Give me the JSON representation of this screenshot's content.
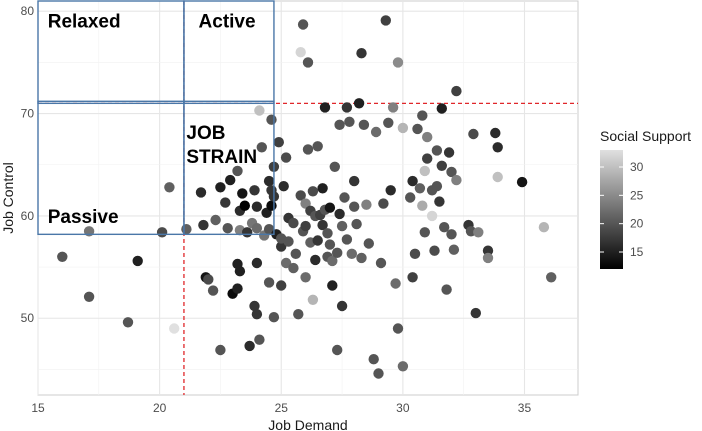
{
  "chart_data": {
    "type": "scatter",
    "xlabel": "Job Demand",
    "ylabel": "Job Control",
    "xlim": [
      15,
      37.2
    ],
    "ylim": [
      42.5,
      81
    ],
    "xticks": [
      15,
      20,
      25,
      30,
      35
    ],
    "yticks": [
      50,
      60,
      70,
      80
    ],
    "grid": true,
    "threshold_x": 21,
    "threshold_y": 71,
    "quadrant_labels": [
      {
        "name": "relaxed",
        "lines": [
          "Relaxed"
        ],
        "x": 15.4,
        "y": 79.0
      },
      {
        "name": "active",
        "lines": [
          "Active"
        ],
        "x": 21.6,
        "y": 79.0
      },
      {
        "name": "job-strain",
        "lines": [
          "JOB",
          "STRAIN"
        ],
        "x": 21.1,
        "y": 68.1
      },
      {
        "name": "passive",
        "lines": [
          "Passive"
        ],
        "x": 15.4,
        "y": 59.9
      }
    ],
    "quadrant_boxes": [
      {
        "x0": 15,
        "x1": 21,
        "y0": 71,
        "y1": 81
      },
      {
        "x0": 21,
        "x1": 24.7,
        "y0": 71,
        "y1": 81
      },
      {
        "x0": 15,
        "x1": 21,
        "y0": 58.2,
        "y1": 71.2
      },
      {
        "x0": 21,
        "x1": 24.7,
        "y0": 58.2,
        "y1": 71.2
      }
    ],
    "legend": {
      "title": "Social Support",
      "range": [
        12,
        33
      ],
      "ticks": [
        15,
        20,
        25,
        30
      ],
      "position": "right"
    },
    "points": [
      {
        "x": 16.0,
        "y": 56.0,
        "s": 20
      },
      {
        "x": 17.1,
        "y": 52.1,
        "s": 20
      },
      {
        "x": 17.1,
        "y": 58.5,
        "s": 23
      },
      {
        "x": 18.7,
        "y": 49.6,
        "s": 20
      },
      {
        "x": 19.1,
        "y": 55.6,
        "s": 15
      },
      {
        "x": 20.1,
        "y": 58.4,
        "s": 19
      },
      {
        "x": 20.4,
        "y": 62.8,
        "s": 21
      },
      {
        "x": 20.6,
        "y": 49.0,
        "s": 33
      },
      {
        "x": 21.1,
        "y": 58.7,
        "s": 21
      },
      {
        "x": 21.7,
        "y": 62.3,
        "s": 16
      },
      {
        "x": 21.8,
        "y": 59.1,
        "s": 17
      },
      {
        "x": 21.9,
        "y": 54.0,
        "s": 14
      },
      {
        "x": 22.0,
        "y": 53.8,
        "s": 19
      },
      {
        "x": 22.2,
        "y": 52.7,
        "s": 20
      },
      {
        "x": 22.3,
        "y": 59.6,
        "s": 21
      },
      {
        "x": 22.5,
        "y": 62.8,
        "s": 15
      },
      {
        "x": 22.5,
        "y": 46.9,
        "s": 20
      },
      {
        "x": 22.7,
        "y": 61.3,
        "s": 17
      },
      {
        "x": 22.8,
        "y": 58.8,
        "s": 20
      },
      {
        "x": 22.9,
        "y": 63.5,
        "s": 15
      },
      {
        "x": 23.0,
        "y": 52.4,
        "s": 13
      },
      {
        "x": 23.2,
        "y": 64.4,
        "s": 20
      },
      {
        "x": 23.2,
        "y": 55.3,
        "s": 15
      },
      {
        "x": 23.2,
        "y": 52.9,
        "s": 15
      },
      {
        "x": 23.3,
        "y": 58.6,
        "s": 24
      },
      {
        "x": 23.3,
        "y": 54.6,
        "s": 15
      },
      {
        "x": 23.3,
        "y": 60.5,
        "s": 16
      },
      {
        "x": 23.4,
        "y": 62.2,
        "s": 14
      },
      {
        "x": 23.5,
        "y": 61.0,
        "s": 11
      },
      {
        "x": 23.6,
        "y": 58.4,
        "s": 17
      },
      {
        "x": 23.7,
        "y": 47.3,
        "s": 16
      },
      {
        "x": 23.8,
        "y": 59.3,
        "s": 23
      },
      {
        "x": 23.9,
        "y": 62.5,
        "s": 17
      },
      {
        "x": 23.9,
        "y": 51.2,
        "s": 17
      },
      {
        "x": 24.0,
        "y": 55.4,
        "s": 16
      },
      {
        "x": 24.0,
        "y": 58.8,
        "s": 22
      },
      {
        "x": 24.0,
        "y": 60.9,
        "s": 16
      },
      {
        "x": 24.0,
        "y": 50.4,
        "s": 17
      },
      {
        "x": 24.1,
        "y": 47.9,
        "s": 20
      },
      {
        "x": 24.1,
        "y": 70.3,
        "s": 30
      },
      {
        "x": 24.2,
        "y": 66.7,
        "s": 20
      },
      {
        "x": 24.3,
        "y": 58.1,
        "s": 23
      },
      {
        "x": 24.4,
        "y": 60.3,
        "s": 15
      },
      {
        "x": 24.5,
        "y": 58.7,
        "s": 20
      },
      {
        "x": 24.5,
        "y": 63.4,
        "s": 16
      },
      {
        "x": 24.5,
        "y": 53.5,
        "s": 20
      },
      {
        "x": 24.6,
        "y": 61.0,
        "s": 13
      },
      {
        "x": 24.6,
        "y": 69.4,
        "s": 20
      },
      {
        "x": 24.6,
        "y": 62.5,
        "s": 17
      },
      {
        "x": 24.7,
        "y": 64.8,
        "s": 18
      },
      {
        "x": 24.7,
        "y": 61.9,
        "s": 17
      },
      {
        "x": 24.7,
        "y": 50.1,
        "s": 20
      },
      {
        "x": 24.8,
        "y": 58.2,
        "s": 15
      },
      {
        "x": 24.9,
        "y": 67.2,
        "s": 18
      },
      {
        "x": 25.0,
        "y": 53.2,
        "s": 18
      },
      {
        "x": 25.0,
        "y": 57.0,
        "s": 17
      },
      {
        "x": 25.0,
        "y": 57.8,
        "s": 20
      },
      {
        "x": 25.1,
        "y": 62.9,
        "s": 16
      },
      {
        "x": 25.2,
        "y": 55.4,
        "s": 22
      },
      {
        "x": 25.2,
        "y": 65.7,
        "s": 19
      },
      {
        "x": 25.3,
        "y": 59.8,
        "s": 17
      },
      {
        "x": 25.3,
        "y": 57.5,
        "s": 20
      },
      {
        "x": 25.5,
        "y": 54.9,
        "s": 21
      },
      {
        "x": 25.5,
        "y": 59.3,
        "s": 19
      },
      {
        "x": 25.6,
        "y": 56.3,
        "s": 20
      },
      {
        "x": 25.7,
        "y": 50.4,
        "s": 20
      },
      {
        "x": 25.8,
        "y": 76.0,
        "s": 32
      },
      {
        "x": 25.8,
        "y": 62.0,
        "s": 19
      },
      {
        "x": 25.9,
        "y": 78.7,
        "s": 20
      },
      {
        "x": 25.9,
        "y": 58.5,
        "s": 20
      },
      {
        "x": 26.0,
        "y": 61.2,
        "s": 24
      },
      {
        "x": 26.0,
        "y": 59.0,
        "s": 18
      },
      {
        "x": 26.0,
        "y": 54.0,
        "s": 22
      },
      {
        "x": 26.1,
        "y": 66.5,
        "s": 20
      },
      {
        "x": 26.1,
        "y": 75.0,
        "s": 20
      },
      {
        "x": 26.2,
        "y": 60.5,
        "s": 18
      },
      {
        "x": 26.2,
        "y": 57.4,
        "s": 21
      },
      {
        "x": 26.3,
        "y": 62.4,
        "s": 19
      },
      {
        "x": 26.3,
        "y": 51.8,
        "s": 29
      },
      {
        "x": 26.4,
        "y": 60.0,
        "s": 20
      },
      {
        "x": 26.4,
        "y": 55.7,
        "s": 16
      },
      {
        "x": 26.5,
        "y": 57.6,
        "s": 17
      },
      {
        "x": 26.5,
        "y": 66.8,
        "s": 20
      },
      {
        "x": 26.6,
        "y": 60.1,
        "s": 18
      },
      {
        "x": 26.7,
        "y": 59.1,
        "s": 17
      },
      {
        "x": 26.7,
        "y": 62.7,
        "s": 15
      },
      {
        "x": 26.8,
        "y": 60.6,
        "s": 20
      },
      {
        "x": 26.8,
        "y": 70.6,
        "s": 15
      },
      {
        "x": 26.9,
        "y": 56.0,
        "s": 20
      },
      {
        "x": 26.9,
        "y": 58.3,
        "s": 20
      },
      {
        "x": 27.0,
        "y": 60.8,
        "s": 14
      },
      {
        "x": 27.0,
        "y": 57.2,
        "s": 20
      },
      {
        "x": 27.1,
        "y": 53.2,
        "s": 15
      },
      {
        "x": 27.1,
        "y": 55.6,
        "s": 22
      },
      {
        "x": 27.2,
        "y": 64.8,
        "s": 20
      },
      {
        "x": 27.3,
        "y": 46.9,
        "s": 20
      },
      {
        "x": 27.3,
        "y": 56.4,
        "s": 20
      },
      {
        "x": 27.4,
        "y": 68.9,
        "s": 20
      },
      {
        "x": 27.4,
        "y": 60.2,
        "s": 16
      },
      {
        "x": 27.5,
        "y": 51.2,
        "s": 17
      },
      {
        "x": 27.5,
        "y": 59.0,
        "s": 21
      },
      {
        "x": 27.6,
        "y": 61.8,
        "s": 20
      },
      {
        "x": 27.7,
        "y": 57.7,
        "s": 20
      },
      {
        "x": 27.7,
        "y": 70.6,
        "s": 17
      },
      {
        "x": 27.8,
        "y": 69.2,
        "s": 20
      },
      {
        "x": 27.9,
        "y": 56.3,
        "s": 22
      },
      {
        "x": 28.0,
        "y": 63.4,
        "s": 17
      },
      {
        "x": 28.0,
        "y": 60.9,
        "s": 20
      },
      {
        "x": 28.1,
        "y": 59.2,
        "s": 20
      },
      {
        "x": 28.2,
        "y": 71.0,
        "s": 15
      },
      {
        "x": 28.3,
        "y": 75.9,
        "s": 17
      },
      {
        "x": 28.3,
        "y": 55.9,
        "s": 21
      },
      {
        "x": 28.4,
        "y": 68.9,
        "s": 20
      },
      {
        "x": 28.5,
        "y": 61.1,
        "s": 24
      },
      {
        "x": 28.6,
        "y": 57.3,
        "s": 20
      },
      {
        "x": 28.8,
        "y": 46.0,
        "s": 20
      },
      {
        "x": 28.9,
        "y": 68.2,
        "s": 22
      },
      {
        "x": 29.0,
        "y": 44.6,
        "s": 20
      },
      {
        "x": 29.1,
        "y": 55.4,
        "s": 20
      },
      {
        "x": 29.2,
        "y": 61.2,
        "s": 19
      },
      {
        "x": 29.3,
        "y": 79.1,
        "s": 18
      },
      {
        "x": 29.4,
        "y": 69.1,
        "s": 20
      },
      {
        "x": 29.5,
        "y": 62.5,
        "s": 16
      },
      {
        "x": 29.6,
        "y": 70.6,
        "s": 24
      },
      {
        "x": 29.7,
        "y": 53.4,
        "s": 22
      },
      {
        "x": 29.8,
        "y": 49.0,
        "s": 20
      },
      {
        "x": 29.8,
        "y": 75.0,
        "s": 25
      },
      {
        "x": 30.0,
        "y": 68.6,
        "s": 29
      },
      {
        "x": 30.0,
        "y": 45.3,
        "s": 22
      },
      {
        "x": 30.3,
        "y": 61.8,
        "s": 20
      },
      {
        "x": 30.4,
        "y": 63.4,
        "s": 16
      },
      {
        "x": 30.4,
        "y": 54.0,
        "s": 18
      },
      {
        "x": 30.5,
        "y": 56.3,
        "s": 19
      },
      {
        "x": 30.6,
        "y": 68.5,
        "s": 20
      },
      {
        "x": 30.7,
        "y": 62.7,
        "s": 21
      },
      {
        "x": 30.8,
        "y": 61.0,
        "s": 28
      },
      {
        "x": 30.8,
        "y": 69.8,
        "s": 20
      },
      {
        "x": 30.9,
        "y": 64.4,
        "s": 30
      },
      {
        "x": 30.9,
        "y": 58.4,
        "s": 20
      },
      {
        "x": 31.0,
        "y": 67.7,
        "s": 24
      },
      {
        "x": 31.0,
        "y": 65.6,
        "s": 18
      },
      {
        "x": 31.2,
        "y": 60.0,
        "s": 32
      },
      {
        "x": 31.2,
        "y": 62.5,
        "s": 20
      },
      {
        "x": 31.3,
        "y": 56.6,
        "s": 19
      },
      {
        "x": 31.4,
        "y": 66.4,
        "s": 20
      },
      {
        "x": 31.4,
        "y": 62.9,
        "s": 20
      },
      {
        "x": 31.5,
        "y": 61.4,
        "s": 17
      },
      {
        "x": 31.6,
        "y": 70.5,
        "s": 15
      },
      {
        "x": 31.6,
        "y": 64.9,
        "s": 18
      },
      {
        "x": 31.7,
        "y": 58.9,
        "s": 20
      },
      {
        "x": 31.8,
        "y": 52.8,
        "s": 20
      },
      {
        "x": 31.9,
        "y": 66.2,
        "s": 17
      },
      {
        "x": 32.0,
        "y": 58.2,
        "s": 20
      },
      {
        "x": 32.0,
        "y": 64.3,
        "s": 20
      },
      {
        "x": 32.1,
        "y": 56.7,
        "s": 21
      },
      {
        "x": 32.2,
        "y": 72.2,
        "s": 18
      },
      {
        "x": 32.2,
        "y": 63.5,
        "s": 24
      },
      {
        "x": 32.7,
        "y": 59.1,
        "s": 17
      },
      {
        "x": 32.8,
        "y": 58.5,
        "s": 20
      },
      {
        "x": 32.9,
        "y": 68.0,
        "s": 19
      },
      {
        "x": 33.0,
        "y": 50.5,
        "s": 17
      },
      {
        "x": 33.1,
        "y": 58.4,
        "s": 24
      },
      {
        "x": 33.5,
        "y": 56.6,
        "s": 17
      },
      {
        "x": 33.5,
        "y": 55.9,
        "s": 24
      },
      {
        "x": 33.8,
        "y": 68.1,
        "s": 16
      },
      {
        "x": 33.9,
        "y": 63.8,
        "s": 30
      },
      {
        "x": 33.9,
        "y": 66.7,
        "s": 16
      },
      {
        "x": 34.9,
        "y": 63.3,
        "s": 14
      },
      {
        "x": 35.8,
        "y": 58.9,
        "s": 29
      },
      {
        "x": 36.1,
        "y": 54.0,
        "s": 21
      }
    ]
  }
}
